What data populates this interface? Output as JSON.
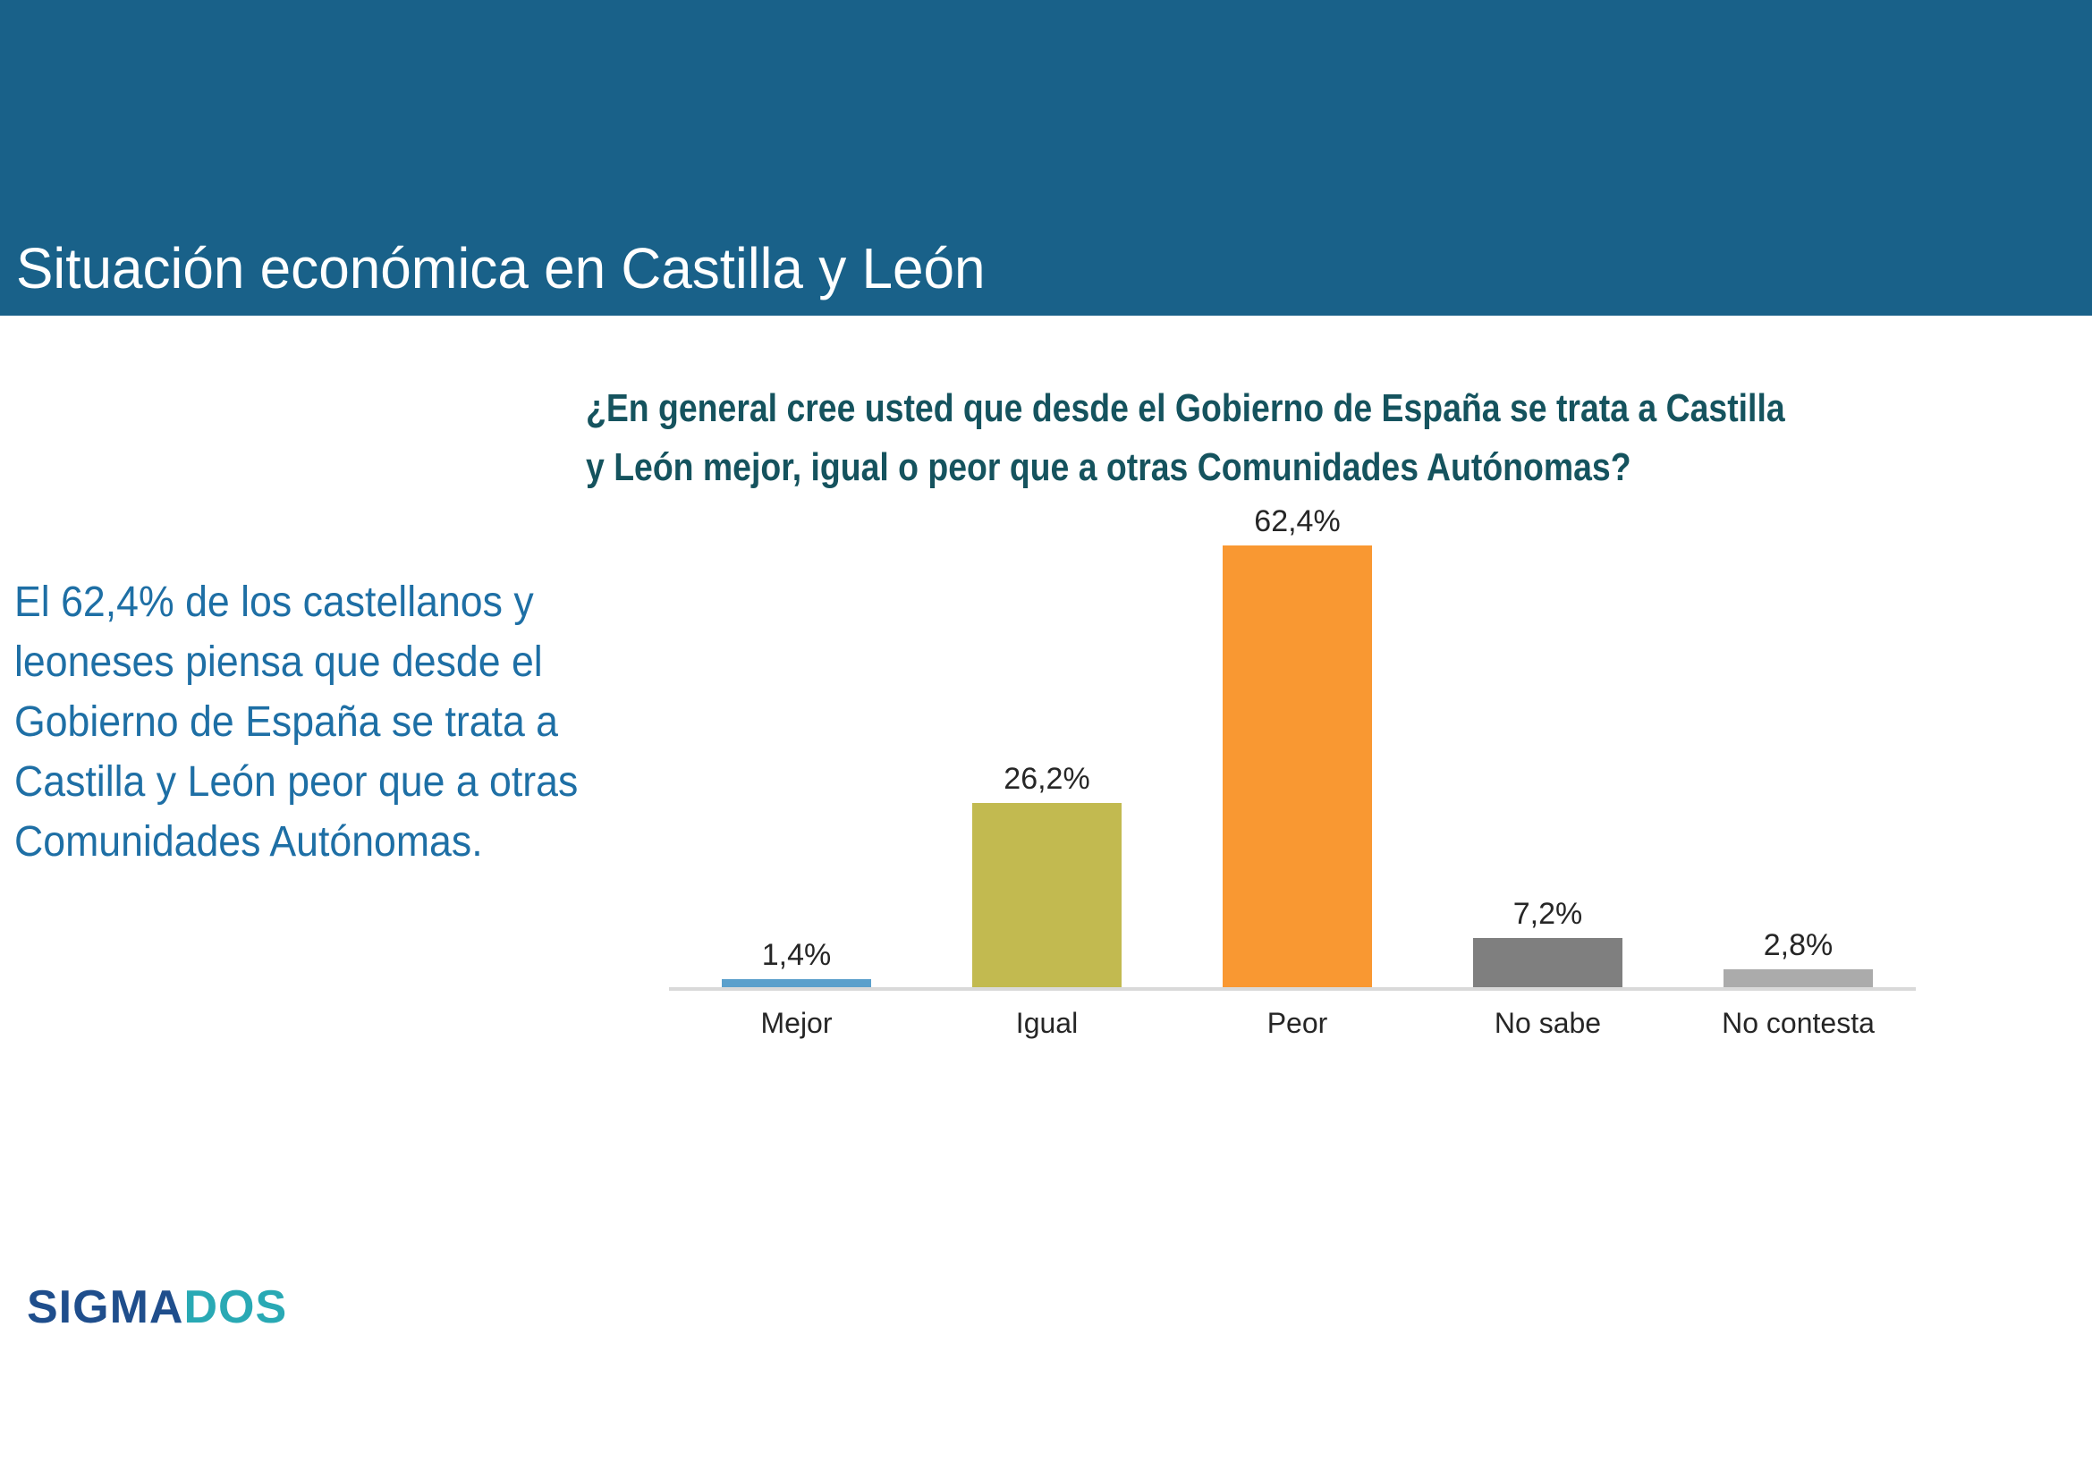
{
  "header": {
    "title": "Situación económica en Castilla y León",
    "background_color": "#196189",
    "text_color": "#FFFFFF"
  },
  "summary": {
    "color": "#1E6FA5",
    "text": "El 62,4% de los castellanos y leoneses piensa que desde el Gobierno de España se trata a Castilla y León peor que a otras Comunidades Autónomas.",
    "lines": [
      "El 62,4% de los castellanos y",
      "leoneses piensa que desde el",
      "Gobierno de España se trata a",
      "Castilla y León peor que a otras",
      "Comunidades Autónomas."
    ]
  },
  "chart_data": {
    "type": "bar",
    "title": "¿En general cree usted que desde el Gobierno de España se trata a Castilla y León mejor, igual o peor que a otras Comunidades Autónomas?",
    "title_lines": [
      "¿En general cree usted que desde el Gobierno de España se trata a Castilla",
      "y León mejor, igual o peor que a otras Comunidades Autónomas?"
    ],
    "title_color": "#15535E",
    "categories": [
      "Mejor",
      "Igual",
      "Peor",
      "No sabe",
      "No contesta"
    ],
    "values": [
      1.4,
      26.2,
      62.4,
      7.2,
      2.8
    ],
    "value_labels": [
      "1,4%",
      "26,2%",
      "62,4%",
      "7,2%",
      "2,8%"
    ],
    "bar_colors": [
      "#5BA0CC",
      "#C2BA50",
      "#F99832",
      "#7F7F7F",
      "#ABABAB"
    ],
    "xlabel": "",
    "ylabel": "",
    "ylim": [
      0,
      70
    ],
    "grid": false,
    "legend": false,
    "axis_color": "#D9D9D9",
    "label_color": "#262626"
  },
  "logo": {
    "part1": "SIGMA",
    "part2": "DOS",
    "part1_color": "#1F4E8C",
    "part2_color": "#29A9B4"
  }
}
